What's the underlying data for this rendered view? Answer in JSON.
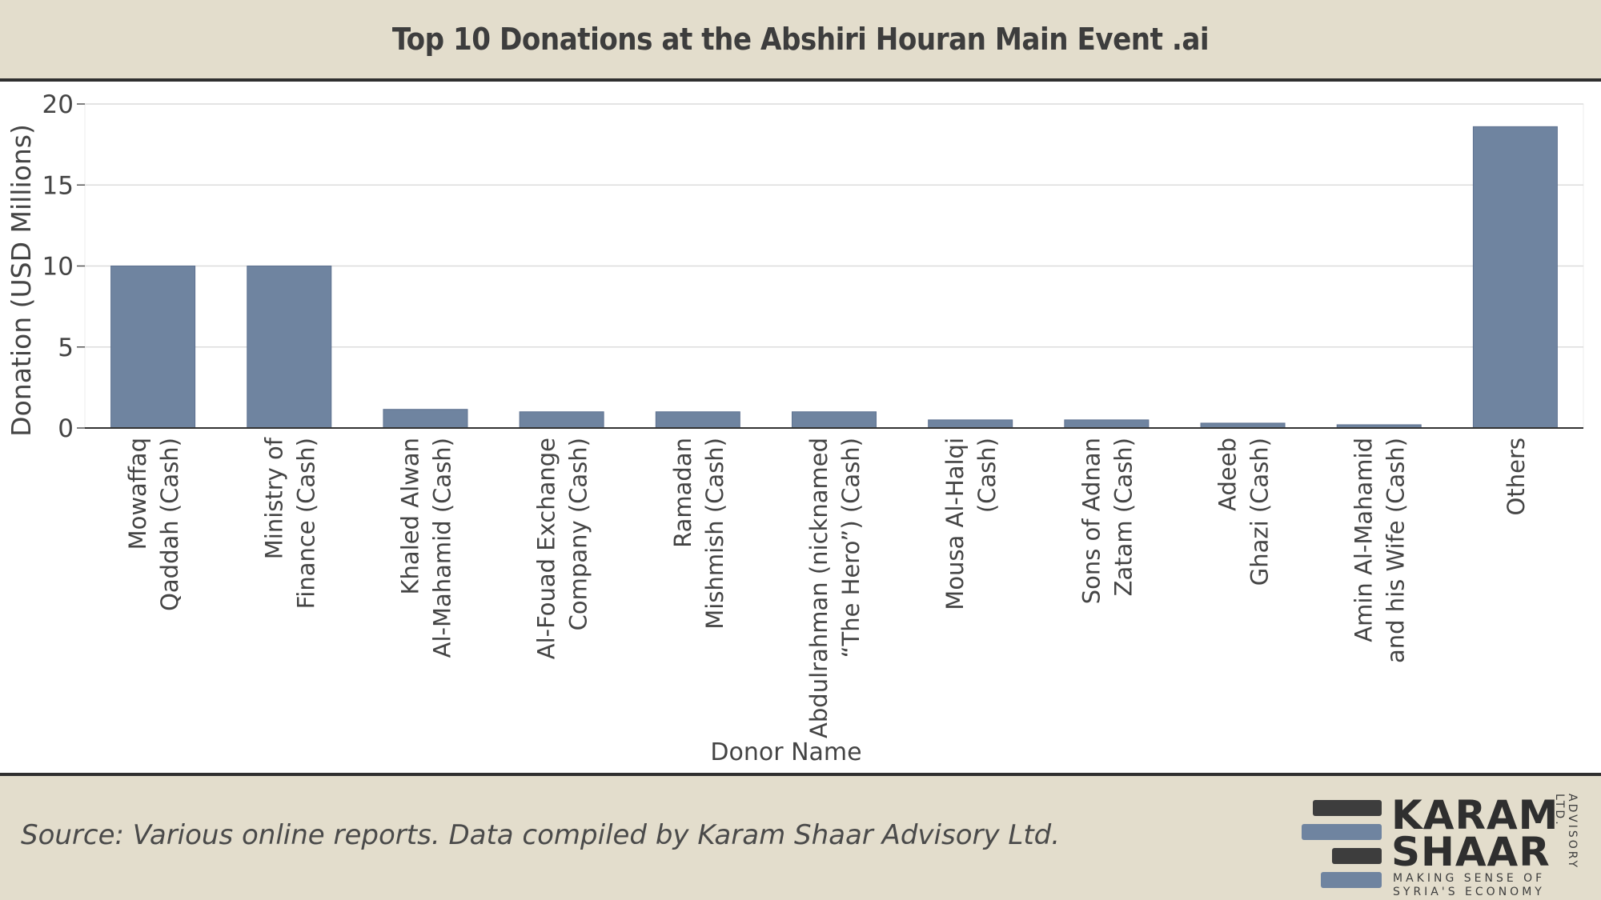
{
  "header": {
    "title": "Top 10 Donations at the Abshiri Houran Main Event .ai"
  },
  "chart_data": {
    "type": "bar",
    "title": "Top 10 Donations at the Abshiri Houran Main Event .ai",
    "xlabel": "Donor Name",
    "ylabel": "Donation (USD Millions)",
    "ylim": [
      0,
      20
    ],
    "yticks": [
      0,
      5,
      10,
      15,
      20
    ],
    "grid": true,
    "bar_color": "#6f84a0",
    "categories": [
      [
        "Mowaffaq",
        "Qaddah (Cash)"
      ],
      [
        "Ministry of",
        "Finance (Cash)"
      ],
      [
        "Khaled Alwan",
        "Al-Mahamid (Cash)"
      ],
      [
        "Al-Fouad Exchange",
        "Company (Cash)"
      ],
      [
        "Ramadan",
        "Mishmish (Cash)"
      ],
      [
        "Abdulrahman (nicknamed",
        "“The Hero”) (Cash)"
      ],
      [
        "Mousa Al-Halqi",
        "(Cash)"
      ],
      [
        "Sons of Adnan",
        "Zatam (Cash)"
      ],
      [
        "Adeeb",
        "Ghazi (Cash)"
      ],
      [
        "Amin Al-Mahamid",
        "and his Wife (Cash)"
      ],
      [
        "Others"
      ]
    ],
    "values": [
      10,
      10,
      1.15,
      1.0,
      1.0,
      1.0,
      0.5,
      0.5,
      0.3,
      0.2,
      18.6
    ]
  },
  "footer": {
    "source": "Source: Various online reports. Data compiled by Karam Shaar Advisory Ltd."
  },
  "logo": {
    "word1": "KARAM",
    "word2": "SHAAR",
    "tagline1": "MAKING SENSE OF",
    "tagline2": "SYRIA'S ECONOMY",
    "vertical": "ADVISORY LTD."
  }
}
